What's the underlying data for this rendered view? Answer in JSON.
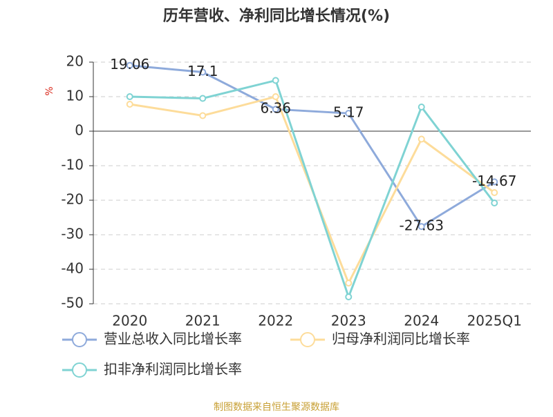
{
  "chart_data": {
    "type": "line",
    "title": "历年营收、净利同比增长情况(%)",
    "y_label": "%",
    "categories": [
      "2020",
      "2021",
      "2022",
      "2023",
      "2024",
      "2025Q1"
    ],
    "series": [
      {
        "name": "营业总收入同比增长率",
        "color": "#8eaadb",
        "values": [
          19.06,
          17.1,
          6.36,
          5.17,
          -27.63,
          -14.67
        ],
        "show_labels": true
      },
      {
        "name": "归母净利润同比增长率",
        "color": "#fddc9a",
        "values": [
          7.8,
          4.5,
          10.0,
          -44.0,
          -2.3,
          -17.8
        ]
      },
      {
        "name": "扣非净利润同比增长率",
        "color": "#7fd3d3",
        "values": [
          10.0,
          9.5,
          14.7,
          -48.0,
          7.0,
          -20.8
        ]
      }
    ],
    "ylim": [
      -50,
      20
    ],
    "yticks": [
      -50,
      -40,
      -30,
      -20,
      -10,
      0,
      10,
      20
    ],
    "grid": true,
    "footer": "制图数据来自恒生聚源数据库"
  }
}
